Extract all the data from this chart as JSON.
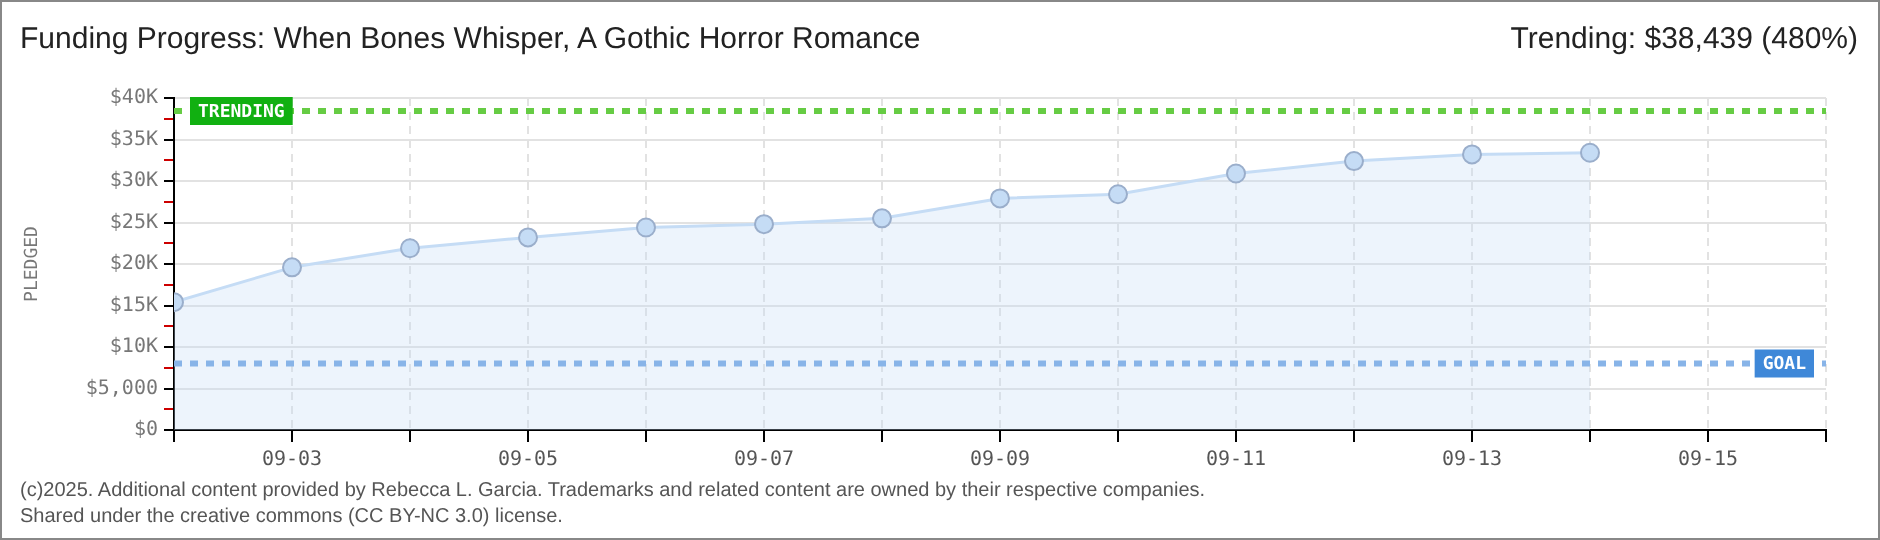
{
  "chart_data": {
    "type": "area",
    "title": "Funding Progress: When Bones Whisper, A Gothic Horror Romance",
    "subtitle": "Trending: $38,439 (480%)",
    "ylabel": "PLEDGED",
    "x": [
      "--09-02",
      "--09-03",
      "--09-04",
      "--09-05",
      "--09-06",
      "--09-07",
      "--09-08",
      "--09-09",
      "--09-10",
      "--09-11",
      "--09-12",
      "--09-13",
      "--09-14"
    ],
    "series": [
      {
        "color": "#c5dcf5",
        "values": [
          15400,
          19600,
          21900,
          23200,
          24400,
          24800,
          25500,
          27900,
          28400,
          30900,
          32400,
          33200,
          33400
        ]
      }
    ],
    "xlim": [
      "--09-02",
      "--09-16"
    ],
    "xticks": [
      {
        "value": "--09-02",
        "label": null
      },
      {
        "value": "--09-03",
        "label": "09-03"
      },
      {
        "value": "--09-04",
        "label": null
      },
      {
        "value": "--09-05",
        "label": "09-05"
      },
      {
        "value": "--09-06",
        "label": null
      },
      {
        "value": "--09-07",
        "label": "09-07"
      },
      {
        "value": "--09-08",
        "label": null
      },
      {
        "value": "--09-09",
        "label": "09-09"
      },
      {
        "value": "--09-10",
        "label": null
      },
      {
        "value": "--09-11",
        "label": "09-11"
      },
      {
        "value": "--09-12",
        "label": null
      },
      {
        "value": "--09-13",
        "label": "09-13"
      },
      {
        "value": "--09-14",
        "label": null
      },
      {
        "value": "--09-15",
        "label": "09-15"
      },
      {
        "value": "--09-16",
        "label": null
      }
    ],
    "ylim": [
      0,
      40000
    ],
    "yticks": [
      {
        "value": 0,
        "label": "$0"
      },
      {
        "value": 2500,
        "label": null
      },
      {
        "value": 5000,
        "label": "$5,000"
      },
      {
        "value": 7500,
        "label": null
      },
      {
        "value": 10000,
        "label": "$10K"
      },
      {
        "value": 12500,
        "label": null
      },
      {
        "value": 15000,
        "label": "$15K"
      },
      {
        "value": 17500,
        "label": null
      },
      {
        "value": 20000,
        "label": "$20K"
      },
      {
        "value": 22500,
        "label": null
      },
      {
        "value": 25000,
        "label": "$25K"
      },
      {
        "value": 27500,
        "label": null
      },
      {
        "value": 30000,
        "label": "$30K"
      },
      {
        "value": 32500,
        "label": null
      },
      {
        "value": 35000,
        "label": "$35K"
      },
      {
        "value": 37500,
        "label": null
      },
      {
        "value": 40000,
        "label": "$40K"
      }
    ],
    "ref_lines": [
      {
        "axis": "y",
        "value": 38439,
        "label": "TRENDING",
        "color": "#66cc44",
        "line_style": "dotted"
      },
      {
        "axis": "y",
        "value": 8000,
        "label": "GOAL",
        "color": "#88b4e8",
        "line_style": "dotted"
      }
    ],
    "grid": true,
    "marker": "circle",
    "line_style": "solid",
    "legend": false,
    "annotations": [
      "(c)2025. Additional content provided by Rebecca L. Garcia. Trademarks and related content are owned by their respective companies.",
      "Shared under the creative commons (CC BY-NC 3.0) license."
    ]
  }
}
